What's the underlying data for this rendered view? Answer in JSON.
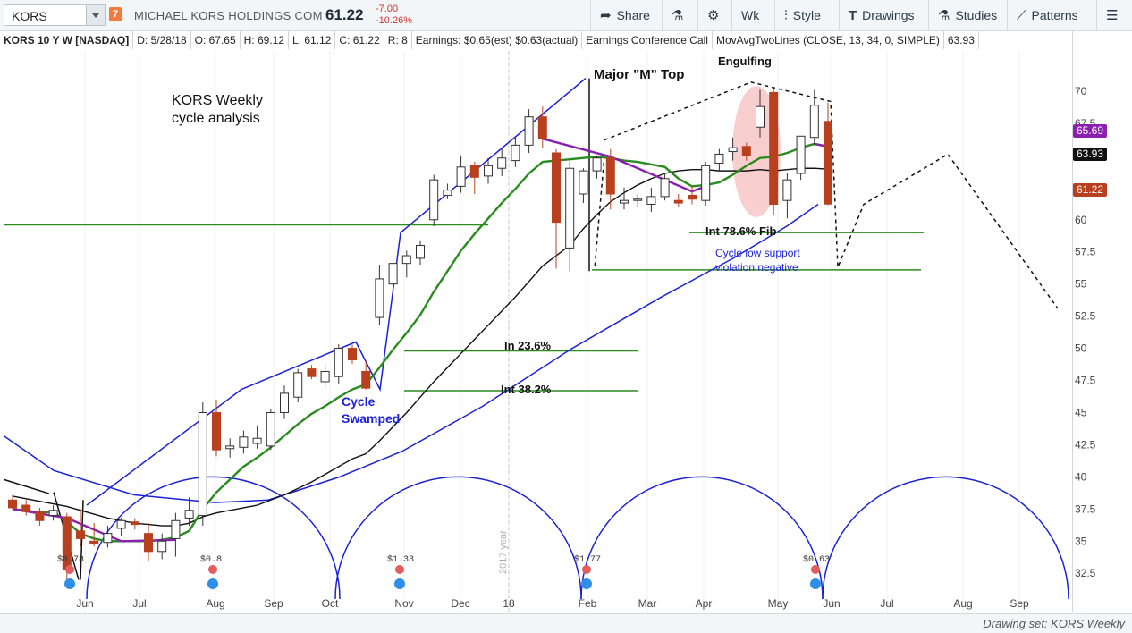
{
  "toolbar": {
    "symbol": "KORS",
    "flag": "7",
    "company": "MICHAEL KORS HOLDINGS COM",
    "last": "61.22",
    "change": "-7.00",
    "change_pct": "-10.26%",
    "share_label": "Share",
    "wk_label": "Wk",
    "style_label": "Style",
    "drawings_label": "Drawings",
    "studies_label": "Studies",
    "patterns_label": "Patterns"
  },
  "legend": {
    "title": "KORS 10 Y W [NASDAQ]",
    "date": "D: 5/28/18",
    "open": "O: 67.65",
    "high": "H: 69.12",
    "low": "L: 61.12",
    "close": "C: 61.22",
    "range": "R: 8",
    "earnings": "Earnings: $0.65(est) $0.63(actual)",
    "conf": "Earnings Conference Call",
    "study": "MovAvgTwoLines (CLOSE, 13, 34, 0, SIMPLE)",
    "study_val": "63.93"
  },
  "price_tags": {
    "purple": "65.69",
    "black": "63.93",
    "red": "61.22"
  },
  "bottom": {
    "drawing_set": "Drawing set: KORS Weekly"
  },
  "annotations": {
    "title1": "KORS Weekly",
    "title2": "cycle analysis",
    "major_m": "Major \"M\" Top",
    "engulfing": "Engulfing",
    "fib786": "Int 78.6% Fib",
    "cycle_low1": "Cycle low support",
    "cycle_low2": "violation negative",
    "fib236": "In 23.6%",
    "fib382": "Int 38.2%",
    "cycle1": "Cycle",
    "cycle2": "Swamped",
    "year_label": "2017 year"
  },
  "earnings_markers": [
    "$0.78",
    "$0.8",
    "$1.33",
    "$1.77",
    "$0.63"
  ],
  "colors": {
    "up": "#ffffff",
    "down": "#b8401f",
    "ma_fast": "#2a8c1e",
    "ma_slow": "#111111",
    "channel": "#1c22d6",
    "hline": "#2a8c1e",
    "ellipse": "#f4a6a6",
    "purple": "#8a1fb0"
  },
  "chart_data": {
    "type": "candlestick",
    "ylim": [
      30.5,
      72.5
    ],
    "y_ticks": [
      32.5,
      35,
      37.5,
      40,
      42.5,
      45,
      47.5,
      50,
      52.5,
      55,
      57.5,
      60,
      62.5,
      65,
      67.5,
      70
    ],
    "x_tick_labels": [
      "Jun",
      "Jul",
      "Aug",
      "Sep",
      "Oct",
      "Nov",
      "Dec",
      "18",
      "Feb",
      "Mar",
      "Apr",
      "May",
      "Jun",
      "Jul",
      "Aug",
      "Sep"
    ],
    "candles": [
      [
        38.2,
        38.6,
        37.5,
        37.6
      ],
      [
        37.8,
        38.2,
        37.0,
        37.3
      ],
      [
        37.3,
        37.6,
        36.2,
        36.6
      ],
      [
        37.0,
        37.8,
        36.6,
        37.4
      ],
      [
        36.9,
        37.2,
        31.5,
        32.8
      ],
      [
        35.8,
        37.5,
        34.6,
        35.2
      ],
      [
        35.0,
        36.4,
        34.6,
        34.8
      ],
      [
        34.9,
        36.2,
        34.5,
        35.6
      ],
      [
        36.0,
        36.8,
        35.4,
        36.6
      ],
      [
        36.5,
        36.8,
        35.9,
        36.3
      ],
      [
        35.6,
        36.4,
        33.4,
        34.2
      ],
      [
        34.2,
        35.6,
        33.6,
        35.0
      ],
      [
        35.2,
        37.2,
        33.8,
        36.6
      ],
      [
        36.8,
        38.4,
        36.2,
        37.4
      ],
      [
        37.0,
        45.8,
        36.2,
        45.0
      ],
      [
        45.0,
        46.0,
        41.6,
        42.1
      ],
      [
        42.2,
        43.0,
        41.5,
        42.4
      ],
      [
        42.3,
        43.6,
        41.8,
        43.1
      ],
      [
        42.6,
        44.0,
        42.2,
        43.0
      ],
      [
        42.4,
        45.3,
        42.1,
        45.0
      ],
      [
        45.0,
        47.1,
        44.5,
        46.5
      ],
      [
        46.2,
        48.4,
        45.8,
        48.1
      ],
      [
        48.4,
        48.7,
        47.6,
        47.8
      ],
      [
        47.4,
        48.8,
        46.8,
        48.2
      ],
      [
        47.8,
        50.3,
        47.2,
        50.0
      ],
      [
        50.0,
        50.3,
        48.8,
        49.1
      ],
      [
        48.2,
        49.0,
        46.8,
        46.9
      ],
      [
        52.4,
        56.5,
        51.8,
        55.4
      ],
      [
        55.0,
        57.0,
        54.4,
        56.6
      ],
      [
        56.6,
        57.6,
        55.5,
        57.2
      ],
      [
        57.0,
        58.4,
        56.5,
        58.0
      ],
      [
        60.0,
        63.5,
        59.5,
        63.1
      ],
      [
        61.9,
        62.8,
        61.6,
        62.3
      ],
      [
        62.6,
        65.0,
        62.1,
        64.1
      ],
      [
        64.2,
        64.5,
        62.0,
        63.3
      ],
      [
        63.4,
        64.8,
        62.8,
        64.2
      ],
      [
        64.0,
        65.6,
        63.4,
        64.8
      ],
      [
        64.6,
        66.4,
        64.1,
        65.8
      ],
      [
        65.8,
        68.6,
        65.2,
        68.0
      ],
      [
        68.0,
        68.8,
        65.6,
        66.3
      ],
      [
        65.2,
        65.5,
        56.2,
        59.8
      ],
      [
        57.8,
        64.5,
        56.0,
        64.0
      ],
      [
        62.0,
        64.0,
        61.3,
        63.8
      ],
      [
        63.8,
        65.0,
        63.2,
        64.8
      ],
      [
        64.8,
        65.5,
        60.8,
        62.0
      ],
      [
        61.3,
        62.5,
        60.8,
        61.5
      ],
      [
        61.5,
        62.0,
        61.0,
        61.6
      ],
      [
        61.2,
        62.5,
        60.6,
        61.8
      ],
      [
        61.8,
        63.6,
        61.5,
        63.2
      ],
      [
        61.5,
        62.0,
        61.0,
        61.3
      ],
      [
        61.9,
        62.6,
        61.2,
        61.6
      ],
      [
        61.5,
        64.5,
        61.1,
        64.2
      ],
      [
        64.4,
        65.5,
        63.8,
        65.1
      ],
      [
        65.3,
        66.4,
        64.6,
        65.6
      ],
      [
        65.7,
        66.0,
        64.6,
        65.0
      ],
      [
        67.2,
        70.1,
        66.4,
        68.8
      ],
      [
        69.9,
        70.2,
        60.4,
        61.2
      ],
      [
        61.5,
        63.6,
        60.1,
        63.1
      ],
      [
        63.6,
        66.5,
        63.1,
        66.5
      ],
      [
        66.4,
        70.1,
        65.8,
        68.9
      ],
      [
        67.65,
        69.12,
        61.12,
        61.22
      ]
    ],
    "ma_fast_name": "13",
    "ma_fast": [
      37.5,
      37.4,
      37.2,
      37.3,
      36.5,
      35.6,
      35.2,
      35.0,
      35.0,
      35.0,
      35.0,
      35.1,
      35.3,
      35.8,
      37.5,
      38.8,
      39.8,
      40.8,
      41.5,
      42.3,
      43.2,
      44.1,
      44.9,
      45.5,
      46.2,
      46.8,
      47.2,
      48.5,
      49.9,
      51.2,
      52.6,
      54.4,
      56.0,
      57.6,
      58.9,
      60.1,
      61.3,
      62.4,
      63.6,
      64.5,
      64.6,
      64.7,
      64.8,
      64.9,
      64.8,
      64.6,
      64.5,
      64.3,
      64.1,
      63.2,
      62.6,
      62.7,
      62.9,
      63.5,
      64.2,
      64.8,
      64.9,
      65.2,
      65.6,
      65.9,
      65.69
    ],
    "ma_slow_name": "34",
    "ma_slow": [
      38.5,
      38.3,
      38.1,
      37.9,
      37.7,
      37.4,
      37.1,
      36.8,
      36.6,
      36.4,
      36.3,
      36.2,
      36.2,
      36.4,
      36.9,
      37.2,
      37.4,
      37.6,
      37.8,
      38.2,
      38.6,
      39.1,
      39.6,
      40.2,
      40.8,
      41.4,
      41.8,
      42.8,
      43.9,
      45.0,
      46.2,
      47.4,
      48.5,
      49.6,
      50.7,
      51.8,
      52.9,
      54.0,
      55.2,
      56.4,
      57.2,
      58.0,
      59.3,
      60.4,
      61.4,
      62.1,
      62.7,
      63.2,
      63.6,
      63.8,
      63.9,
      63.9,
      63.8,
      63.8,
      63.8,
      63.9,
      63.8,
      63.9,
      64.0,
      64.0,
      63.93
    ]
  }
}
